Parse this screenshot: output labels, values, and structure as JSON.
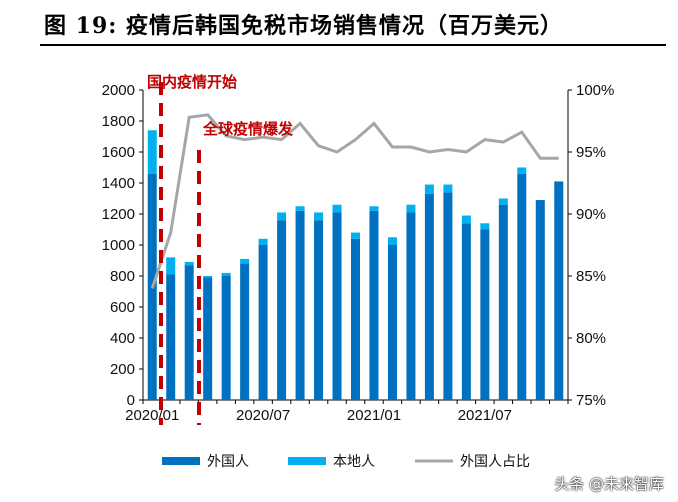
{
  "title": "图  19:  疫情后韩国免税市场销售情况（百万美元）",
  "watermark": "头条 @未来智库",
  "chart_data": {
    "type": "bar",
    "categories": [
      "2020/01",
      "2020/02",
      "2020/03",
      "2020/04",
      "2020/05",
      "2020/06",
      "2020/07",
      "2020/08",
      "2020/09",
      "2020/10",
      "2020/11",
      "2020/12",
      "2021/01",
      "2021/02",
      "2021/03",
      "2021/04",
      "2021/05",
      "2021/06",
      "2021/07",
      "2021/08",
      "2021/09",
      "2021/10",
      "2021/11"
    ],
    "x_tick_labels": [
      "2020/01",
      "2020/07",
      "2021/01",
      "2021/07"
    ],
    "series": [
      {
        "name": "外国人",
        "type": "bar",
        "stacked": true,
        "color": "#0070c0",
        "values": [
          1460,
          810,
          870,
          790,
          800,
          880,
          1000,
          1160,
          1220,
          1160,
          1210,
          1040,
          1220,
          1000,
          1210,
          1330,
          1340,
          1140,
          1100,
          1260,
          1460,
          1290,
          1410
        ]
      },
      {
        "name": "本地人",
        "type": "bar",
        "stacked": true,
        "color": "#00b0f0",
        "values": [
          280,
          110,
          20,
          10,
          20,
          30,
          40,
          50,
          30,
          50,
          50,
          40,
          30,
          50,
          50,
          60,
          50,
          50,
          40,
          40,
          40,
          0,
          0
        ]
      },
      {
        "name": "外国人占比",
        "type": "line",
        "axis": "right",
        "color": "#a6a6a6",
        "values": [
          84,
          88.5,
          97.8,
          98,
          96.3,
          96,
          96.2,
          96,
          97.3,
          95.5,
          95,
          96,
          97.3,
          95.4,
          95.4,
          95,
          95.2,
          95,
          96,
          95.8,
          96.6,
          94.5,
          94.5
        ]
      }
    ],
    "ylim": [
      0,
      2000
    ],
    "yticks": [
      0,
      200,
      400,
      600,
      800,
      1000,
      1200,
      1400,
      1600,
      1800,
      2000
    ],
    "y2lim": [
      75,
      100
    ],
    "y2ticks": [
      "75%",
      "80%",
      "85%",
      "90%",
      "95%",
      "100%"
    ],
    "annotations": [
      {
        "text": "国内疫情开始",
        "at": "2020/01"
      },
      {
        "text": "全球疫情爆发",
        "at": "2020/03"
      }
    ],
    "legend_position": "bottom",
    "grid": false
  }
}
